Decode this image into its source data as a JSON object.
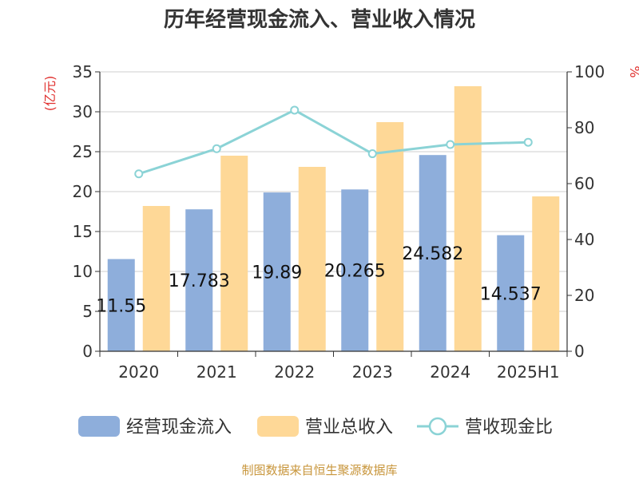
{
  "chart_data": {
    "type": "bar",
    "title": "历年经营现金流入、营业收入情况",
    "categories": [
      "2020",
      "2021",
      "2022",
      "2023",
      "2024",
      "2025H1"
    ],
    "series": [
      {
        "name": "经营现金流入",
        "kind": "bar",
        "axis": "left",
        "color": "#8eaedb",
        "values": [
          11.55,
          17.78,
          19.89,
          20.27,
          24.58,
          14.54
        ],
        "labels": [
          "11.55",
          "17.783",
          "19.89",
          "20.265",
          "24.582",
          "14.537"
        ]
      },
      {
        "name": "营业总收入",
        "kind": "bar",
        "axis": "left",
        "color": "#fed897",
        "values": [
          18.2,
          24.5,
          23.1,
          28.7,
          33.2,
          19.4
        ]
      },
      {
        "name": "营收现金比",
        "kind": "line",
        "axis": "right",
        "color": "#8bd3d6",
        "values": [
          63.5,
          72.5,
          86.3,
          70.7,
          74.0,
          74.8
        ]
      }
    ],
    "yleft": {
      "label": "(亿元)",
      "min": 0,
      "max": 35,
      "ticks": [
        0,
        5,
        10,
        15,
        20,
        25,
        30,
        35
      ]
    },
    "yright": {
      "label": "%",
      "min": 0,
      "max": 100,
      "ticks": [
        0,
        20,
        40,
        60,
        80,
        100
      ]
    },
    "grid": true,
    "legend_position": "bottom"
  },
  "footer": "制图数据来自恒生聚源数据库"
}
